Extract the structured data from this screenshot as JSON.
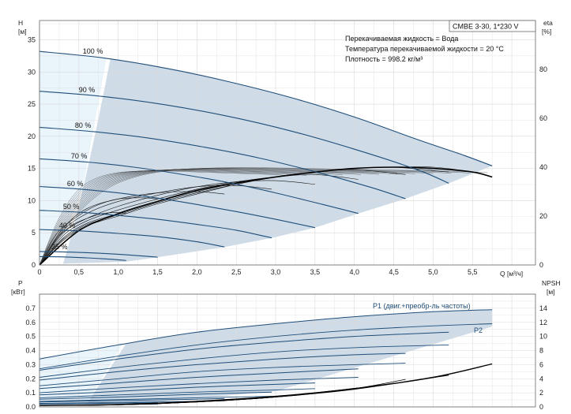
{
  "chart_data": [
    {
      "type": "line",
      "panel": "head",
      "title_box": "CMBE 3-30, 1*230 V",
      "info_lines": [
        "Перекачиваемая жидкость = Вода",
        "Температура перекачиваемой жидкости = 20 °C",
        "Плотность = 998.2 кг/м³"
      ],
      "ylabel_left": "H",
      "ylabel_left_unit": "[м]",
      "ylabel_right": "eta",
      "ylabel_right_unit": "[%]",
      "xlabel": "Q [м³/ч]",
      "xlim": [
        0,
        6.3
      ],
      "ylim": [
        0,
        38
      ],
      "eta_lim": [
        0,
        100
      ],
      "x_ticks": [
        "0",
        "0,5",
        "1,0",
        "1,5",
        "2,0",
        "2,5",
        "3,0",
        "3,5",
        "4,0",
        "4,5",
        "5,0",
        "5,5"
      ],
      "y_ticks": [
        "0",
        "5",
        "10",
        "15",
        "20",
        "25",
        "30",
        "35"
      ],
      "eta_ticks": [
        "0",
        "20",
        "40",
        "60",
        "80"
      ],
      "grid": true,
      "series": [
        {
          "name": "100 %",
          "x": [
            0,
            0.8,
            1.6,
            2.4,
            3.2,
            4.0,
            4.8,
            5.4,
            5.75
          ],
          "y": [
            33.2,
            32.2,
            30.6,
            28.5,
            26.0,
            23.0,
            19.5,
            17.0,
            15.4
          ]
        },
        {
          "name": "90 %",
          "x": [
            0,
            0.8,
            1.6,
            2.4,
            3.2,
            4.0,
            4.8,
            5.2
          ],
          "y": [
            27.0,
            26.2,
            24.9,
            23.1,
            20.8,
            18.0,
            14.8,
            12.7
          ]
        },
        {
          "name": "80 %",
          "x": [
            0,
            0.7,
            1.4,
            2.1,
            2.8,
            3.5,
            4.2,
            4.65
          ],
          "y": [
            21.4,
            20.7,
            19.7,
            18.3,
            16.6,
            14.5,
            12.1,
            10.3
          ]
        },
        {
          "name": "70 %",
          "x": [
            0,
            0.6,
            1.2,
            1.8,
            2.4,
            3.0,
            3.6,
            4.05
          ],
          "y": [
            16.5,
            16.0,
            15.2,
            14.1,
            12.8,
            11.2,
            9.4,
            8.0
          ]
        },
        {
          "name": "60 %",
          "x": [
            0,
            0.5,
            1.0,
            1.5,
            2.0,
            2.5,
            3.0,
            3.5
          ],
          "y": [
            12.2,
            11.8,
            11.2,
            10.4,
            9.4,
            8.3,
            7.1,
            5.8
          ]
        },
        {
          "name": "50 %",
          "x": [
            0,
            0.5,
            1.0,
            1.5,
            2.0,
            2.5,
            2.95
          ],
          "y": [
            8.5,
            8.2,
            7.7,
            7.1,
            6.3,
            5.4,
            4.2
          ]
        },
        {
          "name": "40 %",
          "x": [
            0,
            0.5,
            1.0,
            1.5,
            2.0,
            2.35
          ],
          "y": [
            5.5,
            5.3,
            4.9,
            4.4,
            3.6,
            2.8
          ]
        },
        {
          "name": "25 %",
          "x": [
            0,
            0.4,
            0.8,
            1.2,
            1.5
          ],
          "y": [
            2.1,
            2.0,
            1.8,
            1.5,
            1.2
          ]
        },
        {
          "name": "",
          "x": [
            0,
            0.3,
            0.6,
            0.9,
            1.1
          ],
          "y": [
            1.3,
            1.25,
            1.1,
            0.9,
            0.7
          ]
        }
      ],
      "eta_curves": [
        {
          "x": [
            0,
            0.3,
            0.6,
            1.0,
            1.5,
            2.0,
            2.5,
            3.0,
            3.5,
            4.0,
            4.5,
            5.0,
            5.5,
            5.75
          ],
          "eta": [
            0,
            10,
            16,
            20,
            25,
            29,
            33,
            36,
            38,
            39.5,
            40,
            40,
            38,
            36
          ]
        },
        {
          "x": [
            0,
            0.3,
            0.6,
            1.0,
            1.5,
            2.0,
            2.5,
            3.0,
            3.5,
            4.0,
            4.5,
            5.2
          ],
          "eta": [
            0,
            10.5,
            16.5,
            20.5,
            25.5,
            29.5,
            33,
            36,
            38,
            39.5,
            40,
            38
          ]
        },
        {
          "x": [
            0,
            0.3,
            0.6,
            1.0,
            1.5,
            2.0,
            2.5,
            3.0,
            3.5,
            4.0,
            4.65
          ],
          "eta": [
            0,
            11,
            17,
            21,
            26,
            30,
            33.5,
            36,
            38,
            39,
            37
          ]
        },
        {
          "x": [
            0,
            0.3,
            0.6,
            1.0,
            1.5,
            2.0,
            2.5,
            3.0,
            3.5,
            4.05
          ],
          "eta": [
            0,
            12,
            18,
            22.5,
            27,
            31,
            34,
            36,
            37,
            35
          ]
        },
        {
          "x": [
            0,
            0.3,
            0.6,
            1.0,
            1.5,
            2.0,
            2.5,
            3.0,
            3.5
          ],
          "eta": [
            0,
            13,
            19,
            24,
            28.5,
            32,
            34,
            34.5,
            33
          ]
        },
        {
          "x": [
            0,
            0.3,
            0.6,
            1.0,
            1.5,
            2.0,
            2.5,
            2.95
          ],
          "eta": [
            0,
            14,
            21,
            26,
            29.5,
            32,
            32.5,
            31
          ]
        },
        {
          "x": [
            0,
            0.3,
            0.6,
            1.0,
            1.5,
            2.0,
            2.35
          ],
          "eta": [
            0,
            15,
            23,
            27,
            29.5,
            30,
            29
          ]
        },
        {
          "x": [
            0,
            0.2,
            0.4,
            0.7,
            1.0,
            1.3,
            1.5
          ],
          "eta": [
            0,
            12,
            18,
            24,
            27,
            27.5,
            27
          ]
        },
        {
          "x": [
            0,
            0.2,
            0.4,
            0.6,
            0.8,
            1.0,
            1.1
          ],
          "eta": [
            0,
            10,
            16,
            19,
            21,
            21.5,
            21
          ]
        }
      ],
      "eta_bold": {
        "x": [
          0,
          0.5,
          1.0,
          1.5,
          2.0,
          2.5,
          3.0,
          3.5,
          4.0,
          4.5,
          5.0,
          5.5,
          5.75
        ],
        "eta": [
          0,
          14,
          21,
          26,
          30.5,
          33.5,
          36,
          38,
          39.5,
          40,
          39.5,
          38,
          36
        ]
      },
      "eta_fan": {
        "x": [
          0,
          0.4,
          0.8,
          1.2,
          1.7,
          2.3,
          3.0,
          3.8,
          4.6,
          5.4,
          5.75
        ],
        "eta": [
          0,
          18,
          30,
          36,
          39,
          40,
          40,
          39.5,
          39,
          38.5,
          38
        ]
      }
    },
    {
      "type": "line",
      "panel": "power",
      "ylabel_left": "P",
      "ylabel_left_unit": "[кВт]",
      "ylabel_right": "NPSH",
      "ylabel_right_unit": "[м]",
      "ylim": [
        0,
        0.8
      ],
      "npsh_lim": [
        0,
        16
      ],
      "y_ticks": [
        "0.0",
        "0.1",
        "0.2",
        "0.3",
        "0.4",
        "0.5",
        "0.6",
        "0.7"
      ],
      "npsh_ticks": [
        "0",
        "2",
        "4",
        "6",
        "8",
        "10",
        "12",
        "14"
      ],
      "labels": [
        "P1 (двиг.+преобр-ль частоты)",
        "P2"
      ],
      "p1_curves": [
        {
          "x": [
            0,
            1.0,
            2.0,
            3.0,
            4.0,
            5.0,
            5.75
          ],
          "y": [
            0.34,
            0.44,
            0.53,
            0.59,
            0.64,
            0.675,
            0.69
          ]
        },
        {
          "x": [
            0,
            1.0,
            2.0,
            3.0,
            4.0,
            5.2
          ],
          "y": [
            0.26,
            0.34,
            0.41,
            0.46,
            0.5,
            0.53
          ]
        },
        {
          "x": [
            0,
            1.0,
            2.0,
            3.0,
            4.0,
            4.65
          ],
          "y": [
            0.19,
            0.25,
            0.3,
            0.34,
            0.37,
            0.38
          ]
        },
        {
          "x": [
            0,
            1.0,
            2.0,
            3.0,
            4.05
          ],
          "y": [
            0.13,
            0.17,
            0.21,
            0.24,
            0.27
          ]
        },
        {
          "x": [
            0,
            1.0,
            2.0,
            3.0,
            3.5
          ],
          "y": [
            0.085,
            0.11,
            0.14,
            0.16,
            0.17
          ]
        },
        {
          "x": [
            0,
            1.0,
            2.0,
            2.95
          ],
          "y": [
            0.055,
            0.07,
            0.09,
            0.105
          ]
        },
        {
          "x": [
            0,
            1.0,
            2.0,
            2.35
          ],
          "y": [
            0.035,
            0.045,
            0.055,
            0.06
          ]
        },
        {
          "x": [
            0,
            0.8,
            1.5
          ],
          "y": [
            0.02,
            0.025,
            0.03
          ]
        }
      ],
      "p2_curves": [
        {
          "x": [
            0,
            1.0,
            2.0,
            3.0,
            4.0,
            5.0,
            5.75
          ],
          "y": [
            0.27,
            0.36,
            0.44,
            0.5,
            0.545,
            0.575,
            0.59
          ]
        },
        {
          "x": [
            0,
            1.0,
            2.0,
            3.0,
            4.0,
            5.2
          ],
          "y": [
            0.21,
            0.28,
            0.34,
            0.39,
            0.42,
            0.44
          ]
        },
        {
          "x": [
            0,
            1.0,
            2.0,
            3.0,
            4.0,
            4.65
          ],
          "y": [
            0.15,
            0.2,
            0.25,
            0.28,
            0.3,
            0.31
          ]
        },
        {
          "x": [
            0,
            1.0,
            2.0,
            3.0,
            4.05
          ],
          "y": [
            0.1,
            0.135,
            0.165,
            0.19,
            0.21
          ]
        },
        {
          "x": [
            0,
            1.0,
            2.0,
            3.0,
            3.5
          ],
          "y": [
            0.065,
            0.085,
            0.105,
            0.12,
            0.13
          ]
        },
        {
          "x": [
            0,
            1.0,
            2.0,
            2.95
          ],
          "y": [
            0.04,
            0.052,
            0.065,
            0.075
          ]
        },
        {
          "x": [
            0,
            1.0,
            2.0,
            2.35
          ],
          "y": [
            0.025,
            0.032,
            0.04,
            0.043
          ]
        },
        {
          "x": [
            0,
            0.8,
            1.5
          ],
          "y": [
            0.012,
            0.016,
            0.02
          ]
        }
      ],
      "npsh_curves": [
        {
          "x": [
            0,
            1.0,
            2.0,
            3.0,
            4.0,
            5.0,
            5.75
          ],
          "npsh": [
            0.2,
            0.35,
            0.8,
            1.5,
            2.6,
            4.2,
            6.1
          ]
        },
        {
          "x": [
            0,
            1.0,
            2.0,
            3.0,
            4.0,
            5.2
          ],
          "npsh": [
            0.2,
            0.3,
            0.7,
            1.4,
            2.5,
            4.5
          ]
        },
        {
          "x": [
            0,
            1.0,
            2.0,
            3.0,
            4.0,
            4.65
          ],
          "npsh": [
            0.2,
            0.3,
            0.7,
            1.4,
            2.6,
            3.9
          ]
        },
        {
          "x": [
            0,
            1.0,
            2.0,
            3.0,
            4.05
          ],
          "npsh": [
            0.2,
            0.3,
            0.7,
            1.4,
            2.7
          ]
        }
      ]
    }
  ]
}
